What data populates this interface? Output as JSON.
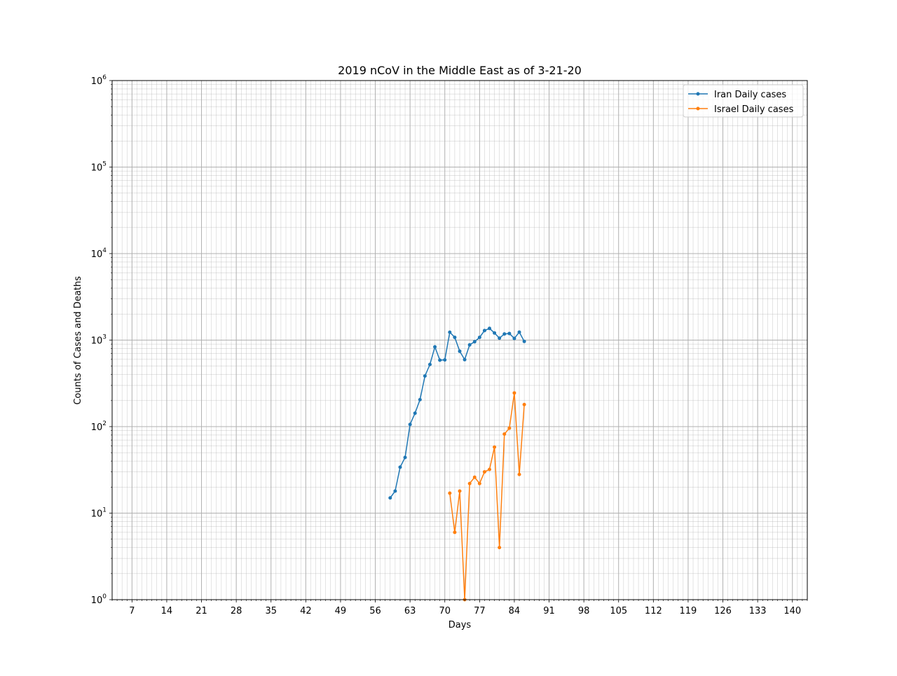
{
  "chart_data": {
    "type": "line",
    "title": "2019 nCoV in the Middle East as of 3-21-20",
    "xlabel": "Days",
    "ylabel": "Counts of Cases and Deaths",
    "xlim": [
      3,
      143
    ],
    "ylim": [
      1,
      1000000
    ],
    "yscale": "log",
    "grid": true,
    "legend_position": "top-right",
    "x_ticks": [
      7,
      14,
      21,
      28,
      35,
      42,
      49,
      56,
      63,
      70,
      77,
      84,
      91,
      98,
      105,
      112,
      119,
      126,
      133,
      140
    ],
    "y_ticks": [
      {
        "base": "10",
        "exp": "0",
        "value": 1
      },
      {
        "base": "10",
        "exp": "1",
        "value": 10
      },
      {
        "base": "10",
        "exp": "2",
        "value": 100
      },
      {
        "base": "10",
        "exp": "3",
        "value": 1000
      },
      {
        "base": "10",
        "exp": "4",
        "value": 10000
      },
      {
        "base": "10",
        "exp": "5",
        "value": 100000
      },
      {
        "base": "10",
        "exp": "6",
        "value": 1000000
      }
    ],
    "series": [
      {
        "name": "Iran Daily cases",
        "color": "#1f77b4",
        "x": [
          59,
          60,
          61,
          62,
          63,
          64,
          65,
          66,
          67,
          68,
          69,
          70,
          71,
          72,
          73,
          74,
          75,
          76,
          77,
          78,
          79,
          80,
          81,
          82,
          83,
          84,
          85,
          86
        ],
        "y": [
          15,
          18,
          34,
          44,
          106,
          143,
          205,
          385,
          523,
          835,
          586,
          591,
          1234,
          1076,
          743,
          595,
          881,
          958,
          1075,
          1289,
          1365,
          1209,
          1053,
          1178,
          1192,
          1046,
          1237,
          966
        ]
      },
      {
        "name": "Israel Daily cases",
        "color": "#ff7f0e",
        "x": [
          71,
          72,
          73,
          74,
          75,
          76,
          77,
          78,
          79,
          80,
          81,
          82,
          83,
          84,
          85,
          86
        ],
        "y": [
          17,
          6,
          18,
          1,
          22,
          26,
          22,
          30,
          32,
          58,
          4,
          82,
          96,
          245,
          28,
          180
        ]
      }
    ]
  }
}
